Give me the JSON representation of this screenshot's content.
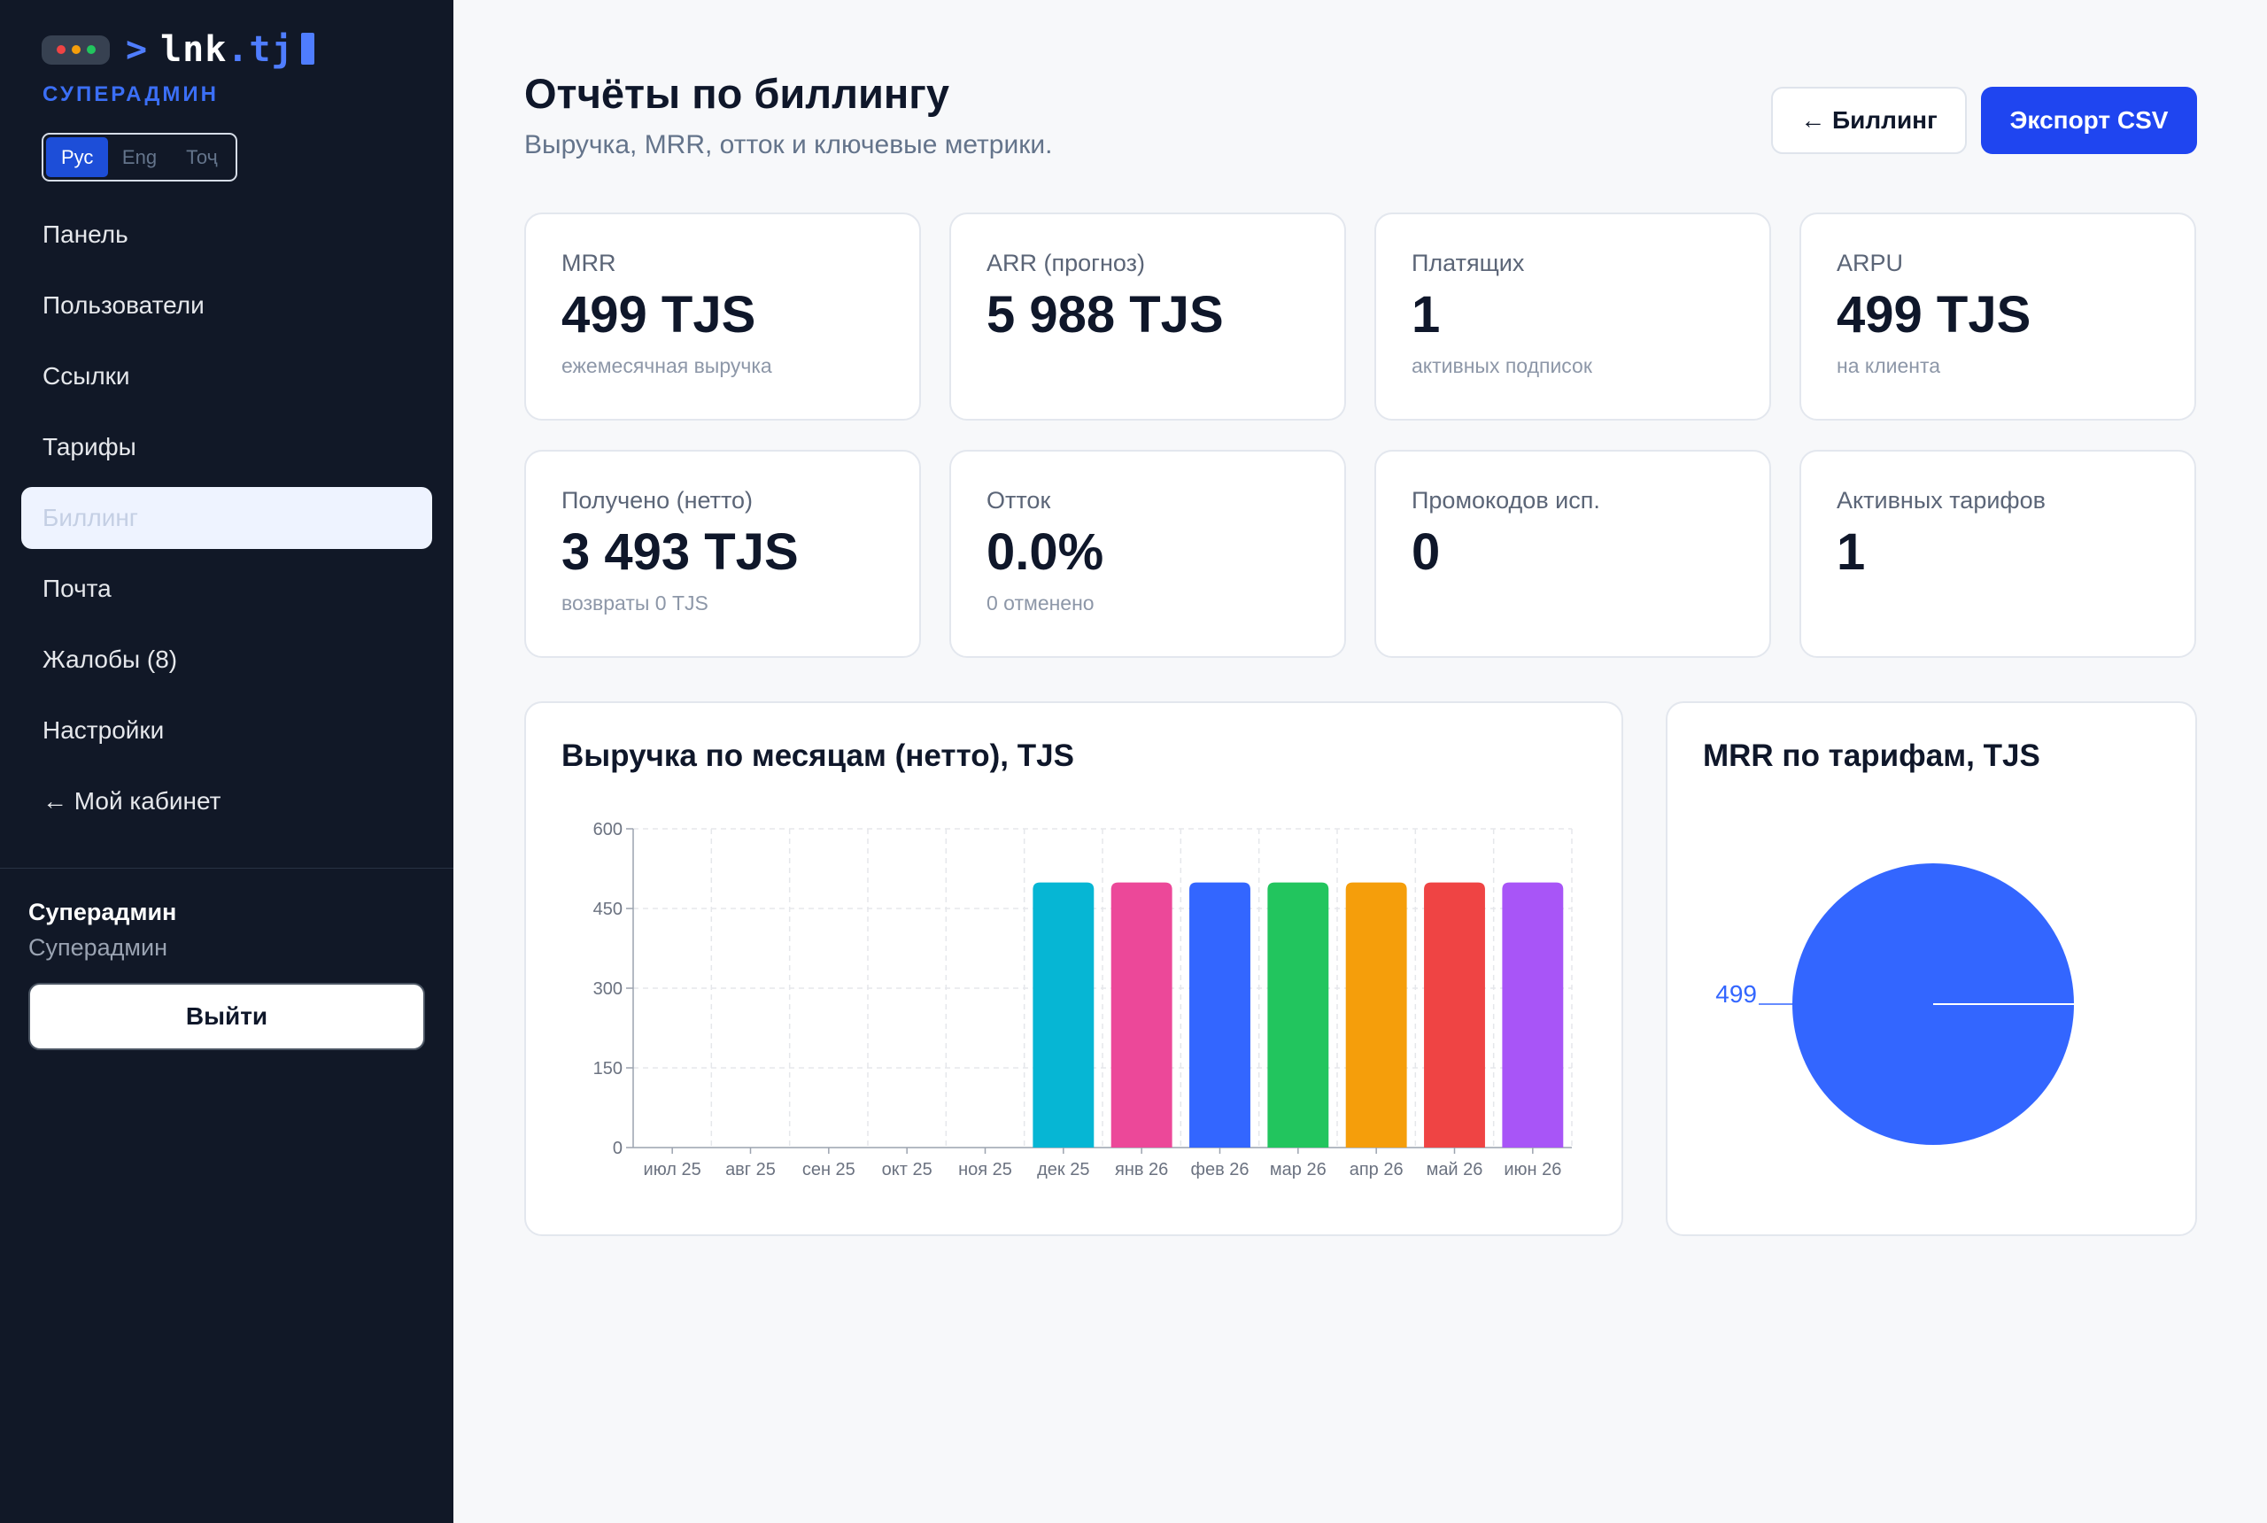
{
  "sidebar": {
    "logo_prompt": ">",
    "logo_name": "lnk",
    "logo_tld": ".tj",
    "dot_colors": [
      "#ef4444",
      "#f59e0b",
      "#22c55e"
    ],
    "role_label": "СУПЕРАДМИН",
    "languages": [
      "Рус",
      "Eng",
      "Тоҷ"
    ],
    "nav": [
      {
        "label": "Панель"
      },
      {
        "label": "Пользователи"
      },
      {
        "label": "Ссылки"
      },
      {
        "label": "Тарифы"
      },
      {
        "label": "Биллинг",
        "active": true
      },
      {
        "label": "Почта"
      },
      {
        "label": "Жалобы (8)"
      },
      {
        "label": "Настройки"
      },
      {
        "label": "← Мой кабинет"
      }
    ],
    "user_name": "Суперадмин",
    "user_role": "Суперадмин",
    "logout_label": "Выйти"
  },
  "header": {
    "title": "Отчёты по биллингу",
    "subtitle": "Выручка, MRR, отток и ключевые метрики.",
    "back_label": "← Биллинг",
    "export_label": "Экспорт CSV"
  },
  "stats": [
    {
      "label": "MRR",
      "value": "499 TJS",
      "sub": "ежемесячная выручка"
    },
    {
      "label": "ARR (прогноз)",
      "value": "5 988 TJS",
      "sub": ""
    },
    {
      "label": "Платящих",
      "value": "1",
      "sub": "активных подписок"
    },
    {
      "label": "ARPU",
      "value": "499 TJS",
      "sub": "на клиента"
    },
    {
      "label": "Получено (нетто)",
      "value": "3 493 TJS",
      "sub": "возвраты 0 TJS"
    },
    {
      "label": "Отток",
      "value": "0.0%",
      "sub": "0 отменено"
    },
    {
      "label": "Промокодов исп.",
      "value": "0",
      "sub": ""
    },
    {
      "label": "Активных тарифов",
      "value": "1",
      "sub": ""
    }
  ],
  "accent_color": "#1f45f0",
  "chart_data": [
    {
      "type": "bar",
      "title": "Выручка по месяцам (нетто), TJS",
      "categories": [
        "июл 25",
        "авг 25",
        "сен 25",
        "окт 25",
        "ноя 25",
        "дек 25",
        "янв 26",
        "фев 26",
        "мар 26",
        "апр 26",
        "май 26",
        "июн 26"
      ],
      "values": [
        0,
        0,
        0,
        0,
        0,
        499,
        499,
        499,
        499,
        499,
        499,
        499
      ],
      "colors": [
        "#06b6d4",
        "#06b6d4",
        "#06b6d4",
        "#06b6d4",
        "#06b6d4",
        "#06b6d4",
        "#ec4899",
        "#3366ff",
        "#22c55e",
        "#f59e0b",
        "#ef4444",
        "#a855f7"
      ],
      "ylim": [
        0,
        600
      ],
      "yticks": [
        0,
        150,
        300,
        450,
        600
      ],
      "grid": true
    },
    {
      "type": "pie",
      "title": "MRR по тарифам, TJS",
      "values": [
        499
      ],
      "labels": [
        "499"
      ],
      "colors": [
        "#3366ff"
      ]
    }
  ]
}
